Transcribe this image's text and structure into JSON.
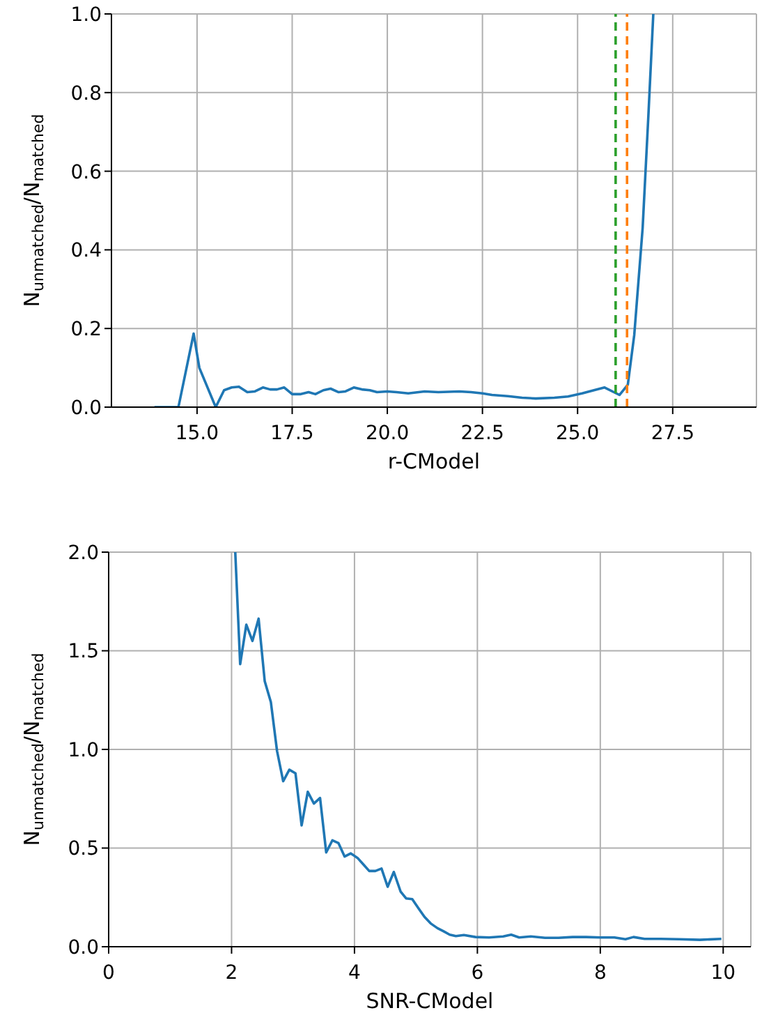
{
  "chart_data": [
    {
      "type": "line",
      "xlabel": "r-CModel",
      "ylabel": "N$_{unmatched}$/N$_{matched}$",
      "xlim": [
        12.75,
        29.7
      ],
      "ylim": [
        0,
        1
      ],
      "xticks": [
        {
          "value": 15,
          "label": "15.0"
        },
        {
          "value": 17.5,
          "label": "17.5"
        },
        {
          "value": 20,
          "label": "20.0"
        },
        {
          "value": 22.5,
          "label": "22.5"
        },
        {
          "value": 25,
          "label": "25.0"
        },
        {
          "value": 27.5,
          "label": "27.5"
        }
      ],
      "yticks": [
        {
          "value": 0,
          "label": "0.0"
        },
        {
          "value": 0.2,
          "label": "0.2"
        },
        {
          "value": 0.4,
          "label": "0.4"
        },
        {
          "value": 0.6,
          "label": "0.6"
        },
        {
          "value": 0.8,
          "label": "0.8"
        },
        {
          "value": 1,
          "label": "1.0"
        }
      ],
      "grid": true,
      "marker": "none",
      "line_style": "solid",
      "ref_lines": [
        {
          "axis": "x",
          "value": 26.0,
          "color": "#2ca02c",
          "line_style": "dashed"
        },
        {
          "axis": "x",
          "value": 26.3,
          "color": "#ff7f0e",
          "line_style": "dashed"
        }
      ],
      "series": [
        {
          "color": "#1f77b4",
          "x": [
            13.88,
            14.51,
            14.91,
            15.06,
            15.49,
            15.71,
            15.91,
            16.1,
            16.32,
            16.52,
            16.73,
            16.92,
            17.1,
            17.29,
            17.5,
            17.71,
            17.93,
            18.11,
            18.32,
            18.51,
            18.72,
            18.9,
            19.12,
            19.33,
            19.54,
            19.73,
            20,
            20.24,
            20.55,
            20.98,
            21.34,
            21.89,
            22.2,
            22.5,
            22.75,
            23.17,
            23.54,
            23.9,
            24.39,
            24.75,
            25.12,
            25.43,
            25.71,
            26.1,
            26.32,
            26.49,
            26.71,
            26.86,
            26.99
          ],
          "values": [
            0,
            0,
            0.187,
            0.1,
            0,
            0.043,
            0.05,
            0.052,
            0.038,
            0.04,
            0.05,
            0.045,
            0.045,
            0.05,
            0.033,
            0.033,
            0.038,
            0.033,
            0.043,
            0.047,
            0.038,
            0.04,
            0.05,
            0.045,
            0.043,
            0.038,
            0.04,
            0.038,
            0.035,
            0.04,
            0.038,
            0.04,
            0.038,
            0.035,
            0.031,
            0.028,
            0.024,
            0.022,
            0.024,
            0.027,
            0.035,
            0.043,
            0.05,
            0.031,
            0.057,
            0.184,
            0.456,
            0.74,
            1.0
          ]
        }
      ]
    },
    {
      "type": "line",
      "xlabel": "SNR-CModel",
      "ylabel": "N$_{unmatched}$/N$_{matched}$",
      "xlim": [
        0,
        10.45
      ],
      "ylim": [
        0,
        2
      ],
      "xticks": [
        0,
        2,
        4,
        6,
        8,
        10
      ],
      "yticks": [
        {
          "value": 0,
          "label": "0.0"
        },
        {
          "value": 0.5,
          "label": "0.5"
        },
        {
          "value": 1,
          "label": "1.0"
        },
        {
          "value": 1.5,
          "label": "1.5"
        },
        {
          "value": 2,
          "label": "2.0"
        }
      ],
      "grid": true,
      "marker": "none",
      "line_style": "solid",
      "series": [
        {
          "color": "#1f77b4",
          "x": [
            2.06,
            2.14,
            2.24,
            2.34,
            2.44,
            2.54,
            2.64,
            2.74,
            2.84,
            2.94,
            3.04,
            3.14,
            3.24,
            3.34,
            3.44,
            3.54,
            3.64,
            3.74,
            3.84,
            3.94,
            4.05,
            4.14,
            4.24,
            4.34,
            4.44,
            4.54,
            4.64,
            4.75,
            4.84,
            4.94,
            5.05,
            5.14,
            5.24,
            5.35,
            5.45,
            5.55,
            5.65,
            5.78,
            5.97,
            6.19,
            6.42,
            6.55,
            6.68,
            6.87,
            7.1,
            7.32,
            7.55,
            7.77,
            8.0,
            8.23,
            8.41,
            8.54,
            8.72,
            8.98,
            9.28,
            9.62,
            9.97
          ],
          "values": [
            2.0,
            1.432,
            1.632,
            1.55,
            1.663,
            1.345,
            1.239,
            0.992,
            0.839,
            0.897,
            0.879,
            0.615,
            0.785,
            0.726,
            0.754,
            0.478,
            0.539,
            0.525,
            0.457,
            0.473,
            0.45,
            0.419,
            0.384,
            0.384,
            0.396,
            0.304,
            0.379,
            0.28,
            0.245,
            0.241,
            0.191,
            0.151,
            0.118,
            0.094,
            0.078,
            0.061,
            0.054,
            0.059,
            0.049,
            0.047,
            0.052,
            0.061,
            0.047,
            0.052,
            0.045,
            0.045,
            0.049,
            0.049,
            0.047,
            0.047,
            0.038,
            0.049,
            0.04,
            0.04,
            0.038,
            0.035,
            0.04
          ]
        }
      ]
    }
  ]
}
